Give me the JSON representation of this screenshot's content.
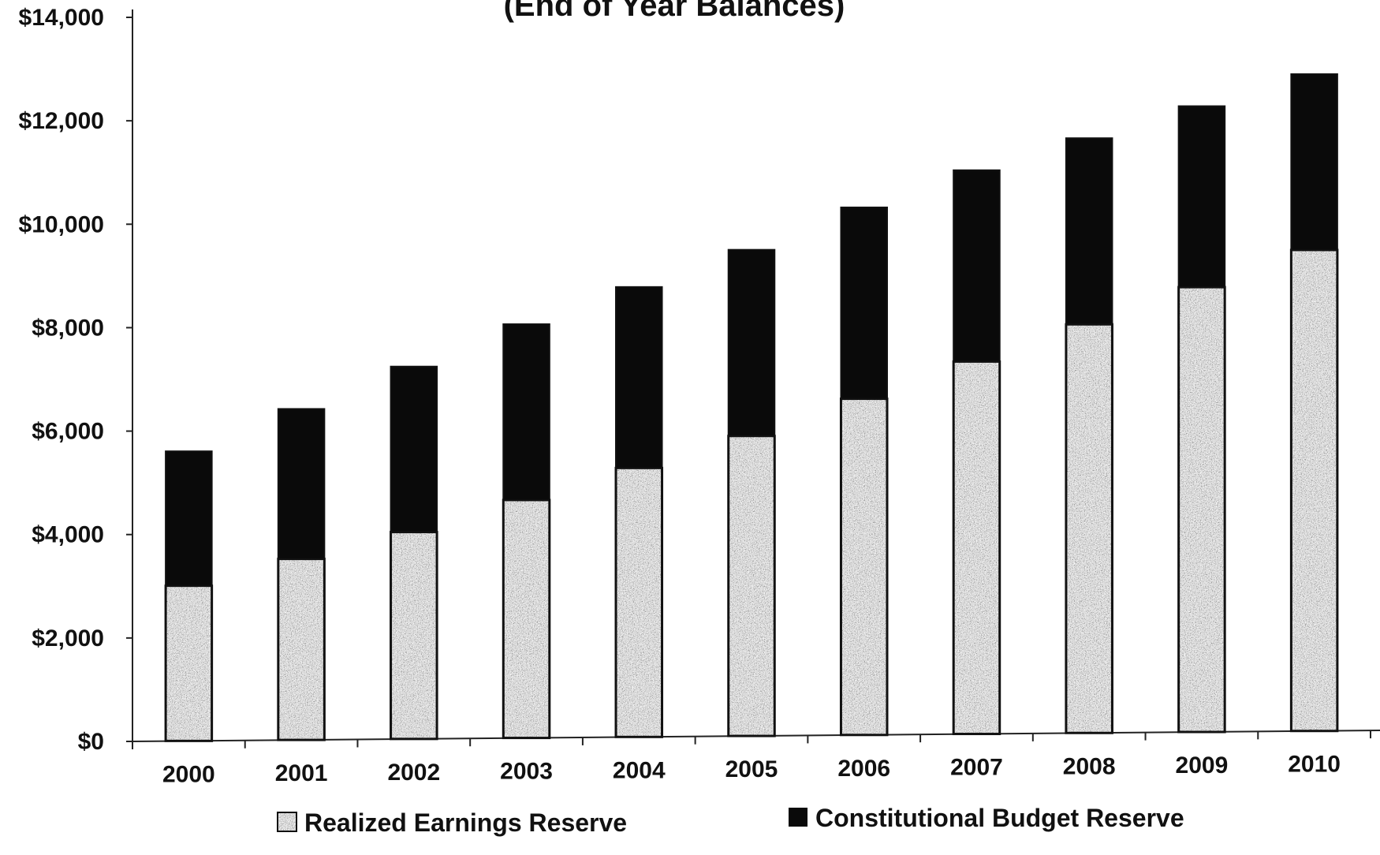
{
  "chart_data": {
    "type": "bar",
    "stacked": true,
    "title": "(End of Year Balances)",
    "xlabel": "",
    "ylabel": "",
    "ylim": [
      0,
      14000
    ],
    "y_ticks": [
      "$0",
      "$2,000",
      "$4,000",
      "$6,000",
      "$8,000",
      "$10,000",
      "$12,000",
      "$14,000"
    ],
    "y_tick_values": [
      0,
      2000,
      4000,
      6000,
      8000,
      10000,
      12000,
      14000
    ],
    "categories": [
      "2000",
      "2001",
      "2002",
      "2003",
      "2004",
      "2005",
      "2006",
      "2007",
      "2008",
      "2009",
      "2010"
    ],
    "series": [
      {
        "name": "Realized Earnings Reserve",
        "color": "#8c8c8c",
        "pattern": "speckled",
        "values": [
          3000,
          3500,
          4000,
          4600,
          5200,
          5800,
          6500,
          7200,
          7900,
          8600,
          9300
        ]
      },
      {
        "name": "Constitutional Budget Reserve",
        "color": "#0a0a0a",
        "pattern": "solid",
        "values": [
          2600,
          2900,
          3200,
          3400,
          3500,
          3600,
          3700,
          3700,
          3600,
          3500,
          3400
        ]
      }
    ],
    "legend_position": "bottom",
    "grid": false
  }
}
